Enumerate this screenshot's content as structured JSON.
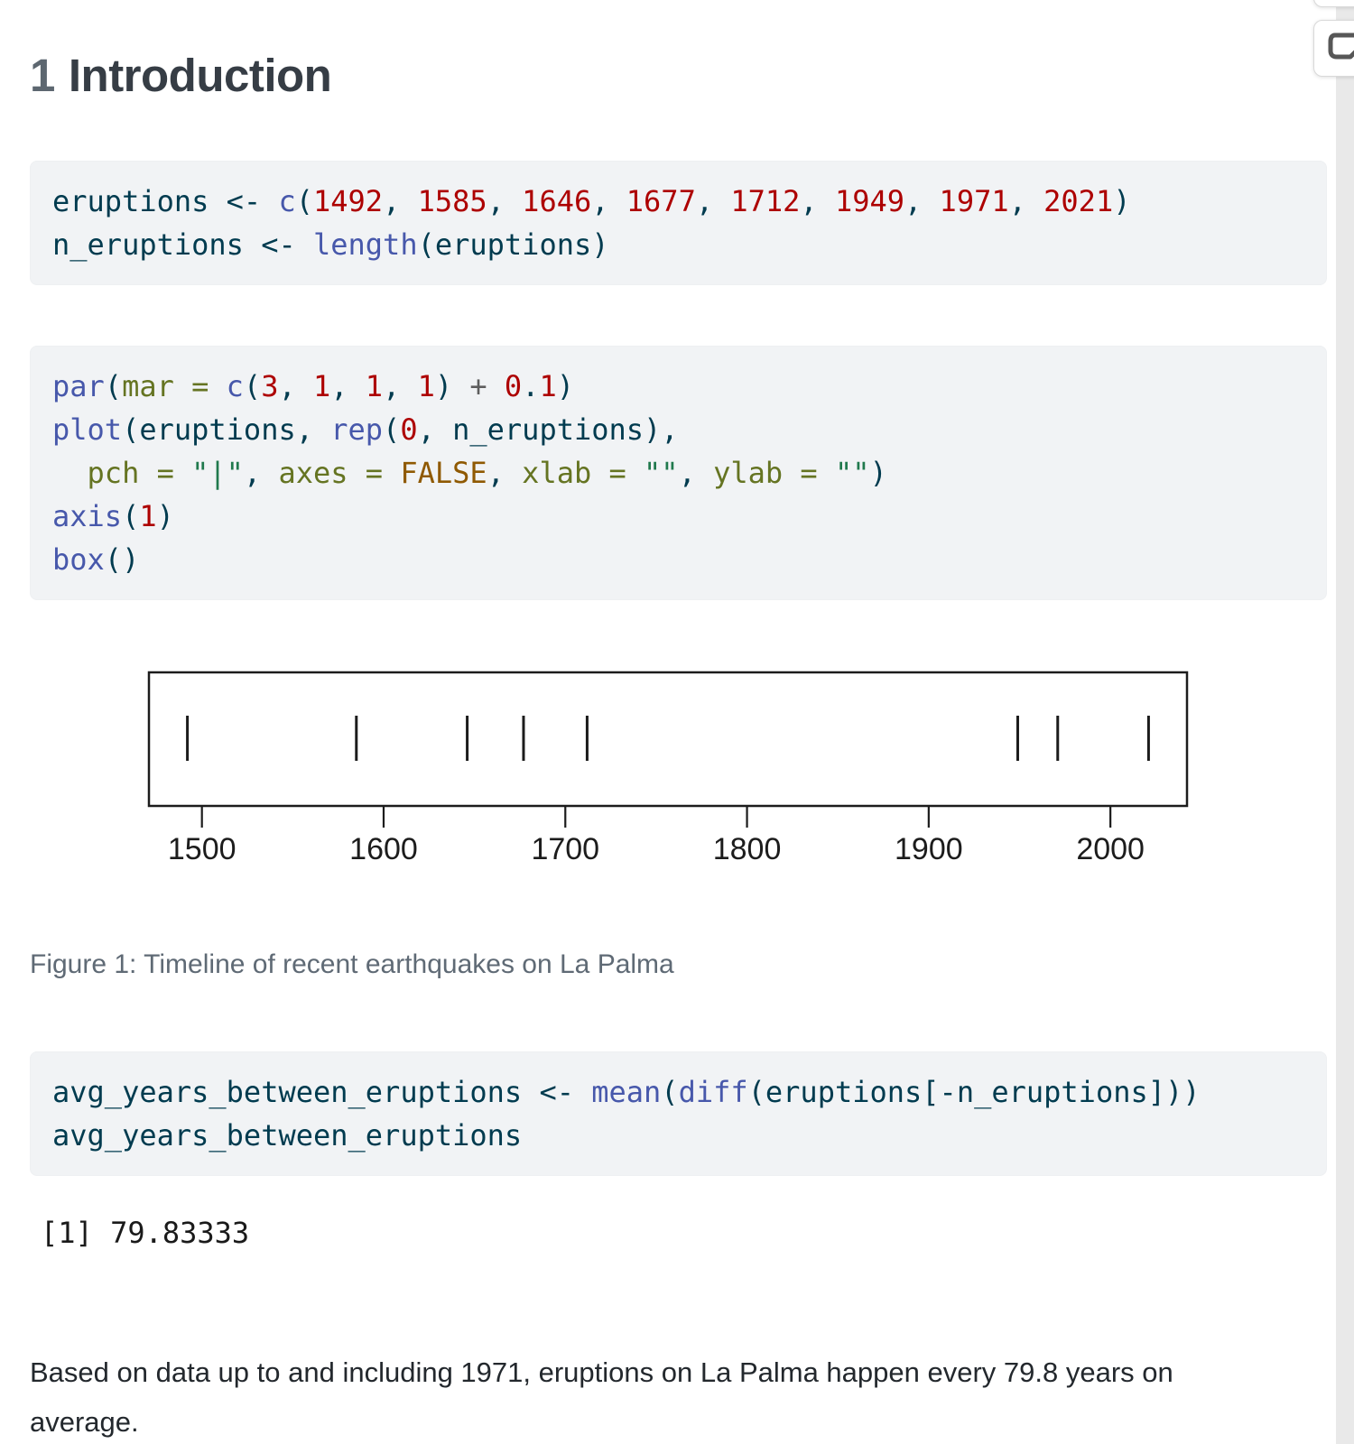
{
  "heading": {
    "number": "1",
    "text": "Introduction"
  },
  "caption": "Figure 1: Timeline of recent earthquakes on La Palma",
  "output_line": "[1] 79.83333",
  "paragraph": "Based on data up to and including 1971, eruptions on La Palma happen every 79.8 years on average.",
  "colors": {
    "code_background": "#f1f3f5",
    "code_base": "#003B4F",
    "function": "#4758AB",
    "number": "#AD0000",
    "string": "#20794D",
    "named_arg": "#657422",
    "constant": "#8f5902",
    "operator": "#5E5E5E",
    "caption_text": "#5f6a75",
    "sidebar_strip": "#e9e9e9",
    "icon_gray": "#575757"
  },
  "icons": {
    "annotate_button": "note-with-folded-corner-icon"
  },
  "code_blocks": [
    {
      "lines": [
        [
          [
            "id",
            "eruptions"
          ],
          [
            "pl",
            " <- "
          ],
          [
            "fu",
            "c"
          ],
          [
            "pl",
            "("
          ],
          [
            "dv",
            "1492"
          ],
          [
            "pl",
            ", "
          ],
          [
            "dv",
            "1585"
          ],
          [
            "pl",
            ", "
          ],
          [
            "dv",
            "1646"
          ],
          [
            "pl",
            ", "
          ],
          [
            "dv",
            "1677"
          ],
          [
            "pl",
            ", "
          ],
          [
            "dv",
            "1712"
          ],
          [
            "pl",
            ", "
          ],
          [
            "dv",
            "1949"
          ],
          [
            "pl",
            ", "
          ],
          [
            "dv",
            "1971"
          ],
          [
            "pl",
            ", "
          ],
          [
            "dv",
            "2021"
          ],
          [
            "pl",
            ")"
          ]
        ],
        [
          [
            "id",
            "n_eruptions"
          ],
          [
            "pl",
            " <- "
          ],
          [
            "fu",
            "length"
          ],
          [
            "pl",
            "("
          ],
          [
            "id",
            "eruptions"
          ],
          [
            "pl",
            ")"
          ]
        ]
      ]
    },
    {
      "lines": [
        [
          [
            "fu",
            "par"
          ],
          [
            "pl",
            "("
          ],
          [
            "at",
            "mar = "
          ],
          [
            "fu",
            "c"
          ],
          [
            "pl",
            "("
          ],
          [
            "dv",
            "3"
          ],
          [
            "pl",
            ", "
          ],
          [
            "dv",
            "1"
          ],
          [
            "pl",
            ", "
          ],
          [
            "dv",
            "1"
          ],
          [
            "pl",
            ", "
          ],
          [
            "dv",
            "1"
          ],
          [
            "pl",
            ") "
          ],
          [
            "op",
            "+"
          ],
          [
            "pl",
            " "
          ],
          [
            "dv",
            "0"
          ],
          [
            "pl",
            "."
          ],
          [
            "dv",
            "1"
          ],
          [
            "pl",
            ")"
          ]
        ],
        [
          [
            "fu",
            "plot"
          ],
          [
            "pl",
            "("
          ],
          [
            "id",
            "eruptions"
          ],
          [
            "pl",
            ", "
          ],
          [
            "fu",
            "rep"
          ],
          [
            "pl",
            "("
          ],
          [
            "dv",
            "0"
          ],
          [
            "pl",
            ", "
          ],
          [
            "id",
            "n_eruptions"
          ],
          [
            "pl",
            "),"
          ]
        ],
        [
          [
            "pl",
            "  "
          ],
          [
            "at",
            "pch = "
          ],
          [
            "st",
            "\"|\""
          ],
          [
            "pl",
            ", "
          ],
          [
            "at",
            "axes = "
          ],
          [
            "cn",
            "FALSE"
          ],
          [
            "pl",
            ", "
          ],
          [
            "at",
            "xlab = "
          ],
          [
            "st",
            "\"\""
          ],
          [
            "pl",
            ", "
          ],
          [
            "at",
            "ylab = "
          ],
          [
            "st",
            "\"\""
          ],
          [
            "pl",
            ")"
          ]
        ],
        [
          [
            "fu",
            "axis"
          ],
          [
            "pl",
            "("
          ],
          [
            "dv",
            "1"
          ],
          [
            "pl",
            ")"
          ]
        ],
        [
          [
            "fu",
            "box"
          ],
          [
            "pl",
            "()"
          ]
        ]
      ]
    },
    {
      "lines": [
        [
          [
            "id",
            "avg_years_between_eruptions"
          ],
          [
            "pl",
            " <- "
          ],
          [
            "fu",
            "mean"
          ],
          [
            "pl",
            "("
          ],
          [
            "fu",
            "diff"
          ],
          [
            "pl",
            "("
          ],
          [
            "id",
            "eruptions"
          ],
          [
            "pl",
            "[-"
          ],
          [
            "id",
            "n_eruptions"
          ],
          [
            "pl",
            "]))"
          ]
        ],
        [
          [
            "id",
            "avg_years_between_eruptions"
          ]
        ]
      ]
    }
  ],
  "chart_data": {
    "type": "scatter",
    "title": "",
    "xlabel": "",
    "ylabel": "",
    "x": [
      1492,
      1585,
      1646,
      1677,
      1712,
      1949,
      1971,
      2021
    ],
    "y": [
      0,
      0,
      0,
      0,
      0,
      0,
      0,
      0
    ],
    "marker": "|",
    "xlim": [
      1470.84,
      2042.16
    ],
    "x_ticks": [
      1500,
      1600,
      1700,
      1800,
      1900,
      2000
    ],
    "grid": false,
    "axis_color": "#1c1c1c"
  }
}
